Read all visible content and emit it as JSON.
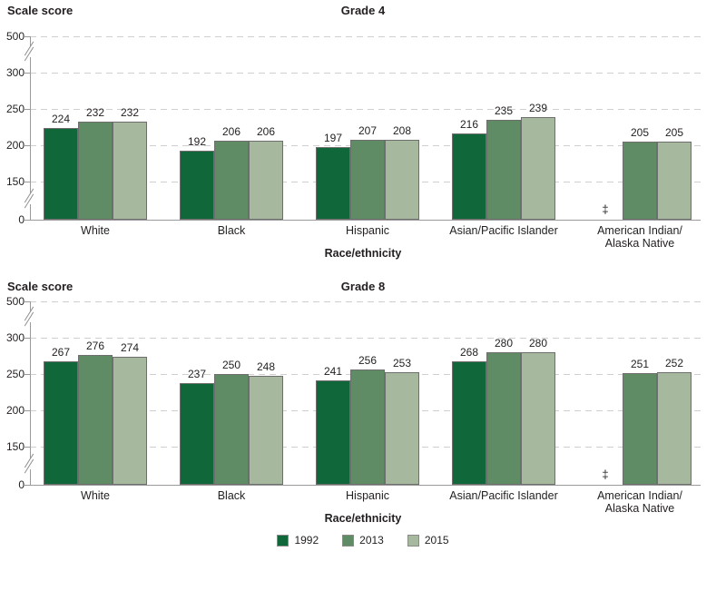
{
  "colors": {
    "series_1992": "#10683A",
    "series_2013": "#5F8C64",
    "series_2015": "#A6B89E",
    "gridline": "#CFCFCF",
    "axis": "#9A9A9A",
    "bar_border": "#6E6E6E",
    "text": "#231F20"
  },
  "legend": {
    "items": [
      {
        "label": "1992",
        "color": "#10683A"
      },
      {
        "label": "2013",
        "color": "#5F8C64"
      },
      {
        "label": "2015",
        "color": "#A6B89E"
      }
    ]
  },
  "chart_data": [
    {
      "type": "bar",
      "title": "Grade 4",
      "ylabel": "Scale score",
      "xlabel": "Race/ethnicity",
      "ylim": [
        0,
        500
      ],
      "yticks": [
        500,
        300,
        250,
        200,
        150,
        0
      ],
      "axis_breaks_between": [
        [
          300,
          500
        ],
        [
          0,
          150
        ]
      ],
      "grid": "dashed-horizontal",
      "legend_position": "bottom-shared",
      "missing_value_marker": "‡",
      "categories": [
        "White",
        "Black",
        "Hispanic",
        "Asian/Pacific Islander",
        "American Indian/\nAlaska Native"
      ],
      "series": [
        {
          "name": "1992",
          "color": "#10683A",
          "values": [
            224,
            192,
            197,
            216,
            null
          ]
        },
        {
          "name": "2013",
          "color": "#5F8C64",
          "values": [
            232,
            206,
            207,
            235,
            205
          ]
        },
        {
          "name": "2015",
          "color": "#A6B89E",
          "values": [
            232,
            206,
            208,
            239,
            205
          ]
        }
      ]
    },
    {
      "type": "bar",
      "title": "Grade 8",
      "ylabel": "Scale score",
      "xlabel": "Race/ethnicity",
      "ylim": [
        0,
        500
      ],
      "yticks": [
        500,
        300,
        250,
        200,
        150,
        0
      ],
      "axis_breaks_between": [
        [
          300,
          500
        ],
        [
          0,
          150
        ]
      ],
      "grid": "dashed-horizontal",
      "legend_position": "bottom-shared",
      "missing_value_marker": "‡",
      "categories": [
        "White",
        "Black",
        "Hispanic",
        "Asian/Pacific Islander",
        "American Indian/\nAlaska Native"
      ],
      "series": [
        {
          "name": "1992",
          "color": "#10683A",
          "values": [
            267,
            237,
            241,
            268,
            null
          ]
        },
        {
          "name": "2013",
          "color": "#5F8C64",
          "values": [
            276,
            250,
            256,
            280,
            251
          ]
        },
        {
          "name": "2015",
          "color": "#A6B89E",
          "values": [
            274,
            248,
            253,
            280,
            252
          ]
        }
      ]
    }
  ]
}
